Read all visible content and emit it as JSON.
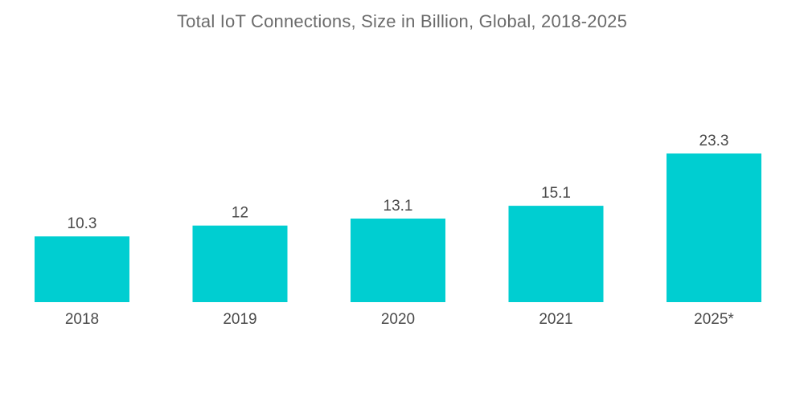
{
  "chart_data": {
    "type": "bar",
    "title": "Total IoT Connections, Size in Billion, Global, 2018-2025",
    "categories": [
      "2018",
      "2019",
      "2020",
      "2021",
      "2025*"
    ],
    "values": [
      10.3,
      12,
      13.1,
      15.1,
      23.3
    ],
    "value_labels": [
      "10.3",
      "12",
      "13.1",
      "15.1",
      "23.3"
    ],
    "xlabel": "",
    "ylabel": "",
    "ylim": [
      0,
      23.3
    ],
    "grid": false,
    "legend": "none",
    "bar_color": "#00ced1"
  }
}
